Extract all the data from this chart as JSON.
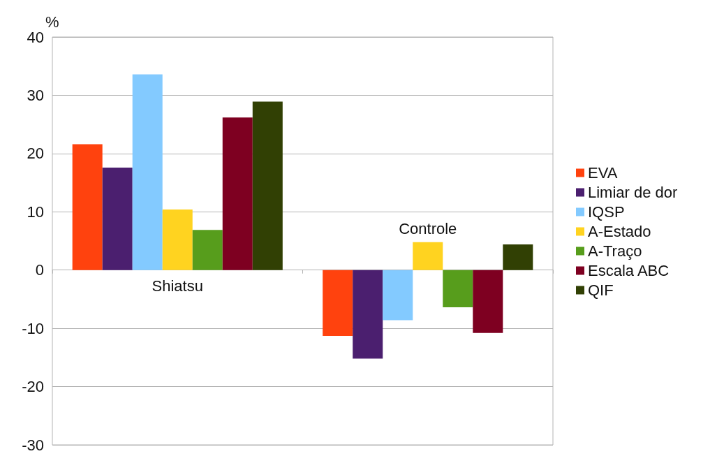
{
  "chart_data": {
    "type": "bar",
    "ylabel": "%",
    "categories": [
      "Shiatsu",
      "Controle"
    ],
    "series": [
      {
        "name": "EVA",
        "color": "#ff420e",
        "values": [
          21.6,
          -11.3
        ]
      },
      {
        "name": "Limiar de dor",
        "color": "#4b1f6f",
        "values": [
          17.6,
          -15.2
        ]
      },
      {
        "name": "IQSP",
        "color": "#83caff",
        "values": [
          33.6,
          -8.6
        ]
      },
      {
        "name": "A-Estado",
        "color": "#ffd320",
        "values": [
          10.4,
          4.8
        ]
      },
      {
        "name": "A-Traço",
        "color": "#579d1c",
        "values": [
          6.9,
          -6.4
        ]
      },
      {
        "name": "Escala ABC",
        "color": "#7e0021",
        "values": [
          26.2,
          -10.8
        ]
      },
      {
        "name": "QIF",
        "color": "#314004",
        "values": [
          28.9,
          4.4
        ]
      }
    ],
    "ylim": [
      -30,
      40
    ],
    "yticks": [
      -30,
      -20,
      -10,
      0,
      10,
      20,
      30,
      40
    ],
    "grid": "y",
    "legend": "right"
  }
}
